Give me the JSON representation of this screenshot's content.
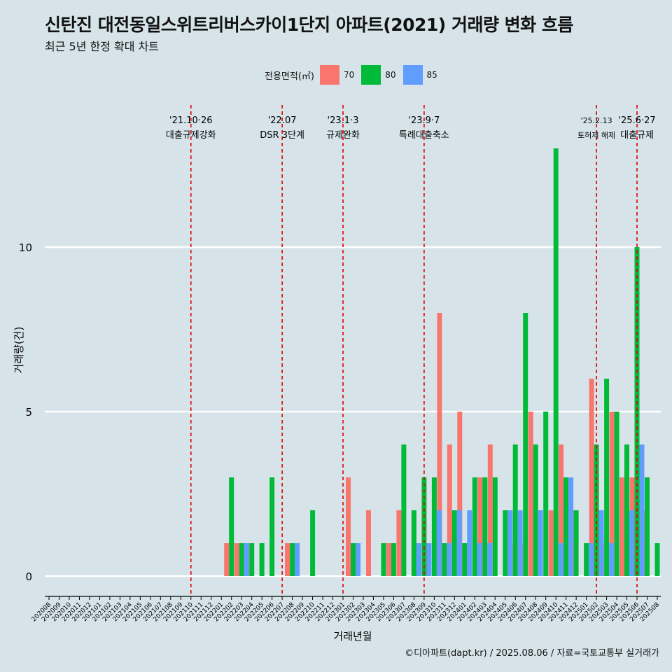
{
  "title": "신탄진 대전동일스위트리버스카이1단지 아파트(2021) 거래량 변화 흐름",
  "subtitle": "최근 5년 한정 확대 차트",
  "caption": "©디아파트(dapt.kr) / 2025.08.06 / 자료=국토교통부 실거래가",
  "legend": {
    "title": "전용면적(㎡)",
    "items": [
      {
        "label": "70",
        "color": "#f8766d"
      },
      {
        "label": "80",
        "color": "#00ba38"
      },
      {
        "label": "85",
        "color": "#619cff"
      }
    ]
  },
  "chart_data": {
    "type": "bar",
    "xlabel": "거래년월",
    "ylabel": "거래량(건)",
    "ylim": [
      0,
      14
    ],
    "yticks": [
      0,
      5,
      10
    ],
    "grid": true,
    "legend_position": "top",
    "categories": [
      "202008",
      "202009",
      "202010",
      "202011",
      "202012",
      "202101",
      "202102",
      "202103",
      "202104",
      "202105",
      "202106",
      "202107",
      "202108",
      "202109",
      "202110",
      "202111",
      "202112",
      "202201",
      "202202",
      "202203",
      "202204",
      "202205",
      "202206",
      "202207",
      "202208",
      "202209",
      "202210",
      "202211",
      "202212",
      "202301",
      "202302",
      "202303",
      "202304",
      "202305",
      "202306",
      "202307",
      "202308",
      "202309",
      "202310",
      "202311",
      "202312",
      "202401",
      "202402",
      "202403",
      "202404",
      "202405",
      "202406",
      "202407",
      "202408",
      "202409",
      "202410",
      "202411",
      "202412",
      "202501",
      "202502",
      "202503",
      "202504",
      "202505",
      "202506",
      "202507",
      "202508"
    ],
    "series": [
      {
        "name": "70",
        "color": "#f8766d",
        "values": [
          0,
          0,
          0,
          0,
          0,
          0,
          0,
          0,
          0,
          0,
          0,
          0,
          0,
          0,
          0,
          0,
          0,
          0,
          1,
          1,
          1,
          0,
          0,
          0,
          1,
          0,
          0,
          0,
          0,
          0,
          3,
          0,
          2,
          0,
          1,
          2,
          0,
          0,
          0,
          8,
          4,
          5,
          0,
          3,
          4,
          0,
          1,
          1,
          5,
          0,
          2,
          4,
          2,
          0,
          6,
          1,
          5,
          3,
          3,
          2,
          0
        ]
      },
      {
        "name": "80",
        "color": "#00ba38",
        "values": [
          0,
          0,
          0,
          0,
          0,
          0,
          0,
          0,
          0,
          0,
          0,
          0,
          0,
          0,
          0,
          0,
          0,
          0,
          3,
          1,
          1,
          1,
          3,
          0,
          1,
          0,
          2,
          0,
          0,
          0,
          1,
          0,
          0,
          1,
          1,
          4,
          2,
          3,
          3,
          1,
          2,
          1,
          3,
          3,
          3,
          2,
          4,
          8,
          4,
          5,
          13,
          3,
          2,
          1,
          4,
          6,
          5,
          4,
          10,
          3,
          1
        ]
      },
      {
        "name": "85",
        "color": "#619cff",
        "values": [
          0,
          0,
          0,
          0,
          0,
          0,
          0,
          0,
          0,
          0,
          0,
          0,
          0,
          0,
          0,
          0,
          0,
          0,
          0,
          1,
          0,
          0,
          0,
          0,
          1,
          0,
          0,
          0,
          0,
          0,
          1,
          0,
          0,
          0,
          0,
          0,
          1,
          1,
          2,
          1,
          2,
          2,
          1,
          1,
          0,
          2,
          2,
          0,
          2,
          0,
          1,
          3,
          0,
          1,
          2,
          1,
          0,
          2,
          4,
          0,
          0
        ]
      }
    ],
    "events": [
      {
        "date": "202110",
        "label_top": "'21.10·26",
        "label_bottom": "대출규제강화"
      },
      {
        "date": "202207",
        "label_top": "'22.07",
        "label_bottom": "DSR 3단계"
      },
      {
        "date": "202301",
        "label_top": "'23.1·3",
        "label_bottom": "규제완화"
      },
      {
        "date": "202309",
        "label_top": "'23.9·7",
        "label_bottom": "특례대출축소"
      },
      {
        "date": "202502",
        "label_top": "'25.2.13",
        "label_bottom": "토허제 해제"
      },
      {
        "date": "202506",
        "label_top": "'25.6·27",
        "label_bottom": "대출규제"
      }
    ]
  }
}
